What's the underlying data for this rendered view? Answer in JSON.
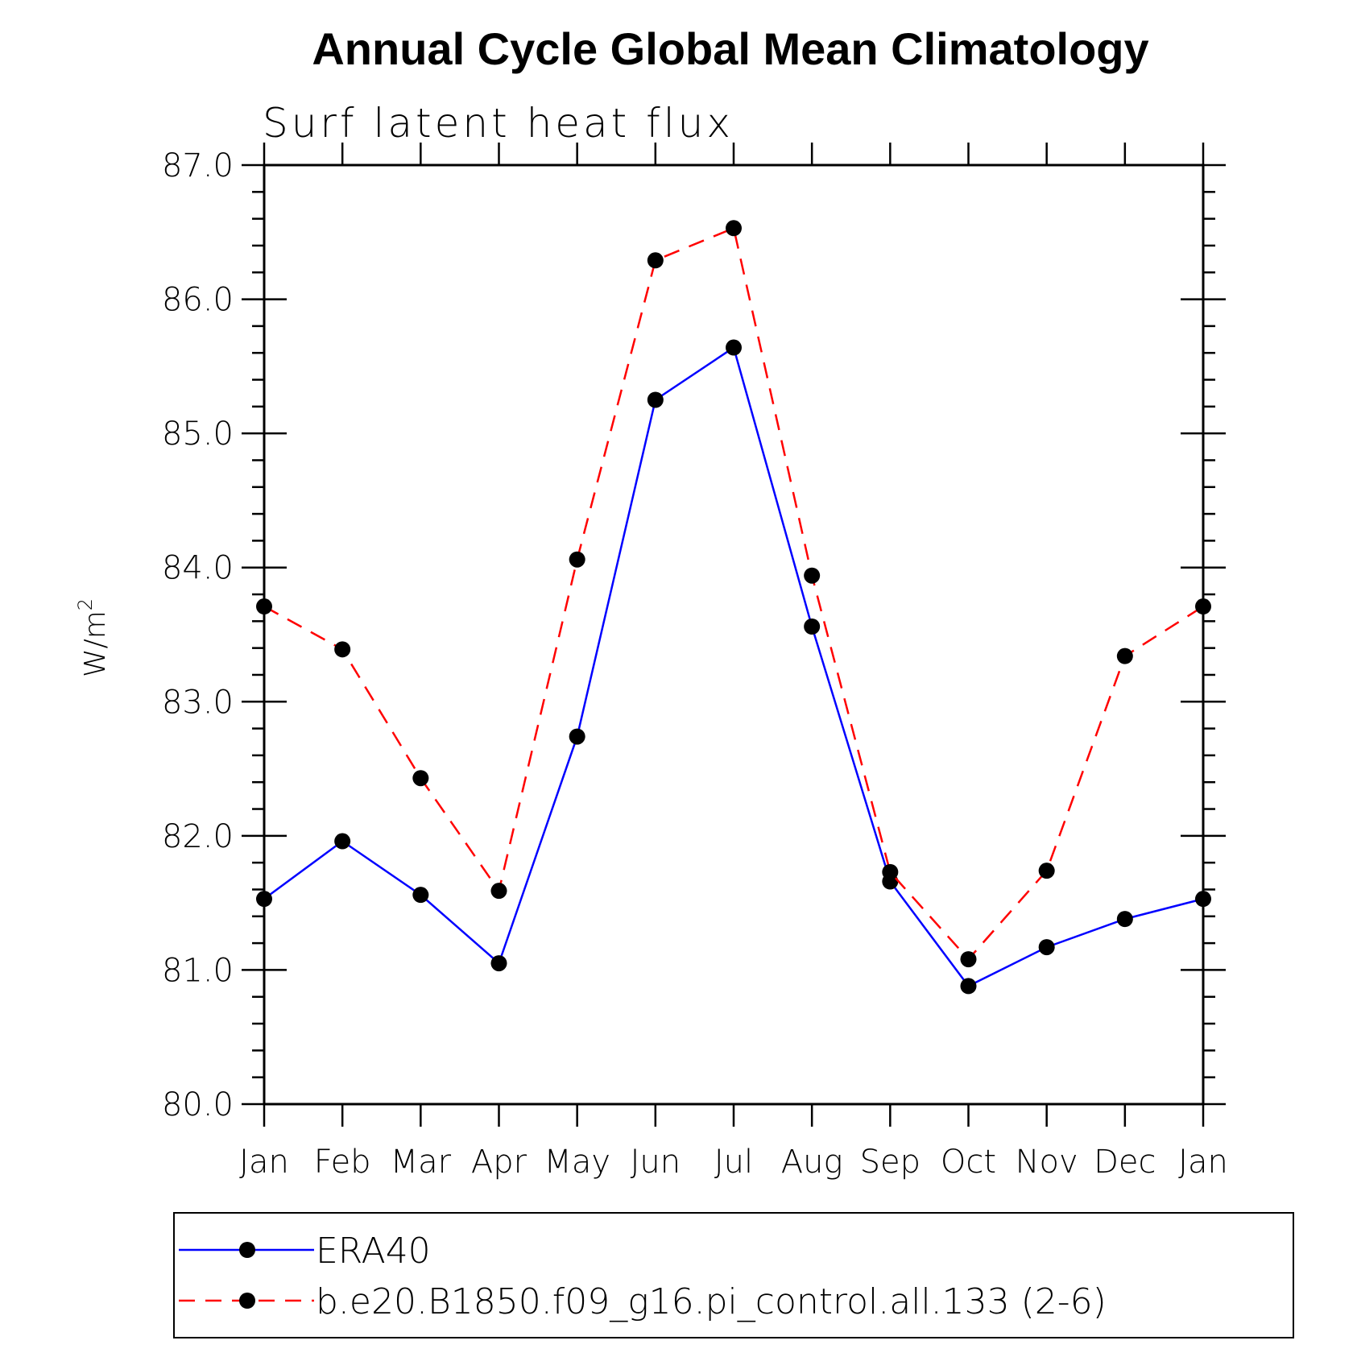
{
  "chart_data": {
    "type": "line",
    "title": "Annual Cycle Global Mean Climatology",
    "subtitle": "Surf latent heat flux",
    "ylabel_base": "W/m",
    "ylabel_sup": "2",
    "xlabel": "",
    "ylim": [
      80.0,
      87.0
    ],
    "yticks": [
      "80.0",
      "81.0",
      "82.0",
      "83.0",
      "84.0",
      "85.0",
      "86.0",
      "87.0"
    ],
    "categories": [
      "Jan",
      "Feb",
      "Mar",
      "Apr",
      "May",
      "Jun",
      "Jul",
      "Aug",
      "Sep",
      "Oct",
      "Nov",
      "Dec",
      "Jan"
    ],
    "series": [
      {
        "name": "ERA40",
        "color": "#0000ff",
        "dashed": false,
        "values": [
          81.53,
          81.96,
          81.56,
          81.05,
          82.74,
          85.25,
          85.64,
          83.56,
          81.66,
          80.88,
          81.17,
          81.38,
          81.53
        ]
      },
      {
        "name": "b.e20.B1850.f09_g16.pi_control.all.133 (2-6)",
        "color": "#ff0000",
        "dashed": true,
        "values": [
          83.71,
          83.39,
          82.43,
          81.59,
          84.06,
          86.29,
          86.53,
          83.94,
          81.73,
          81.08,
          81.74,
          83.34,
          83.71
        ]
      }
    ],
    "legend_position": "bottom"
  }
}
